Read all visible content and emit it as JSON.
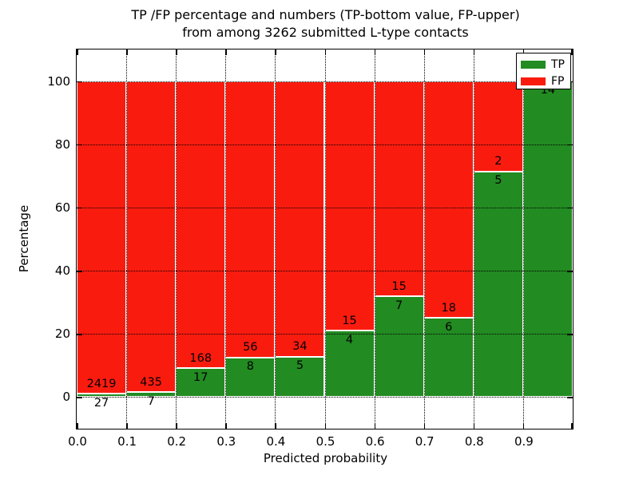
{
  "title": {
    "line1": "TP /FP percentage and numbers (TP-bottom value, FP-upper)",
    "line2": "from among 3262 submitted L-type contacts"
  },
  "axes": {
    "xlabel": "Predicted probability",
    "ylabel": "Percentage"
  },
  "legend": {
    "entries": [
      {
        "label": "TP",
        "color": "#228b22"
      },
      {
        "label": "FP",
        "color": "#fa1b0f"
      }
    ]
  },
  "colors": {
    "tp_green": "#228b22",
    "fp_red": "#fa1b0f",
    "grid": "#000000",
    "background": "#ffffff"
  },
  "chart_data": {
    "type": "bar",
    "variant": "stacked-percentage",
    "title": "TP /FP percentage and numbers (TP-bottom value, FP-upper) from among 3262 submitted L-type contacts",
    "xlabel": "Predicted probability",
    "ylabel": "Percentage",
    "xlim": [
      0.0,
      1.0
    ],
    "ylim": [
      -10,
      110
    ],
    "x_tick_labels": [
      "0.0",
      "0.1",
      "0.2",
      "0.3",
      "0.4",
      "0.5",
      "0.6",
      "0.7",
      "0.8",
      "0.9"
    ],
    "y_ticks": [
      0,
      20,
      40,
      60,
      80,
      100
    ],
    "grid": "dotted, both axes, drawn over bars",
    "legend_position": "upper-right",
    "series": [
      {
        "name": "TP",
        "color": "#228b22",
        "values_pct": [
          1.1,
          1.58,
          9.19,
          12.5,
          12.82,
          21.05,
          31.82,
          25.0,
          71.43,
          100.0
        ]
      },
      {
        "name": "FP",
        "color": "#fa1b0f",
        "values_pct": [
          98.9,
          98.42,
          90.81,
          87.5,
          87.18,
          78.95,
          68.18,
          75.0,
          28.57,
          0.0
        ]
      }
    ],
    "bins": [
      {
        "x_start": 0.0,
        "x_end": 0.1,
        "tp": 27,
        "fp": 2419,
        "tp_pct": 1.1,
        "fp_label_visible": true
      },
      {
        "x_start": 0.1,
        "x_end": 0.2,
        "tp": 7,
        "fp": 435,
        "tp_pct": 1.58,
        "fp_label_visible": true
      },
      {
        "x_start": 0.2,
        "x_end": 0.3,
        "tp": 17,
        "fp": 168,
        "tp_pct": 9.19,
        "fp_label_visible": true
      },
      {
        "x_start": 0.3,
        "x_end": 0.4,
        "tp": 8,
        "fp": 56,
        "tp_pct": 12.5,
        "fp_label_visible": true
      },
      {
        "x_start": 0.4,
        "x_end": 0.5,
        "tp": 5,
        "fp": 34,
        "tp_pct": 12.82,
        "fp_label_visible": true
      },
      {
        "x_start": 0.5,
        "x_end": 0.6,
        "tp": 4,
        "fp": 15,
        "tp_pct": 21.05,
        "fp_label_visible": true
      },
      {
        "x_start": 0.6,
        "x_end": 0.7,
        "tp": 7,
        "fp": 15,
        "tp_pct": 31.82,
        "fp_label_visible": true
      },
      {
        "x_start": 0.7,
        "x_end": 0.8,
        "tp": 6,
        "fp": 18,
        "tp_pct": 25.0,
        "fp_label_visible": true
      },
      {
        "x_start": 0.8,
        "x_end": 0.9,
        "tp": 5,
        "fp": 2,
        "tp_pct": 71.43,
        "fp_label_visible": true
      },
      {
        "x_start": 0.9,
        "x_end": 1.0,
        "tp": 14,
        "fp": 0,
        "tp_pct": 100.0,
        "fp_label_visible": false
      }
    ]
  }
}
